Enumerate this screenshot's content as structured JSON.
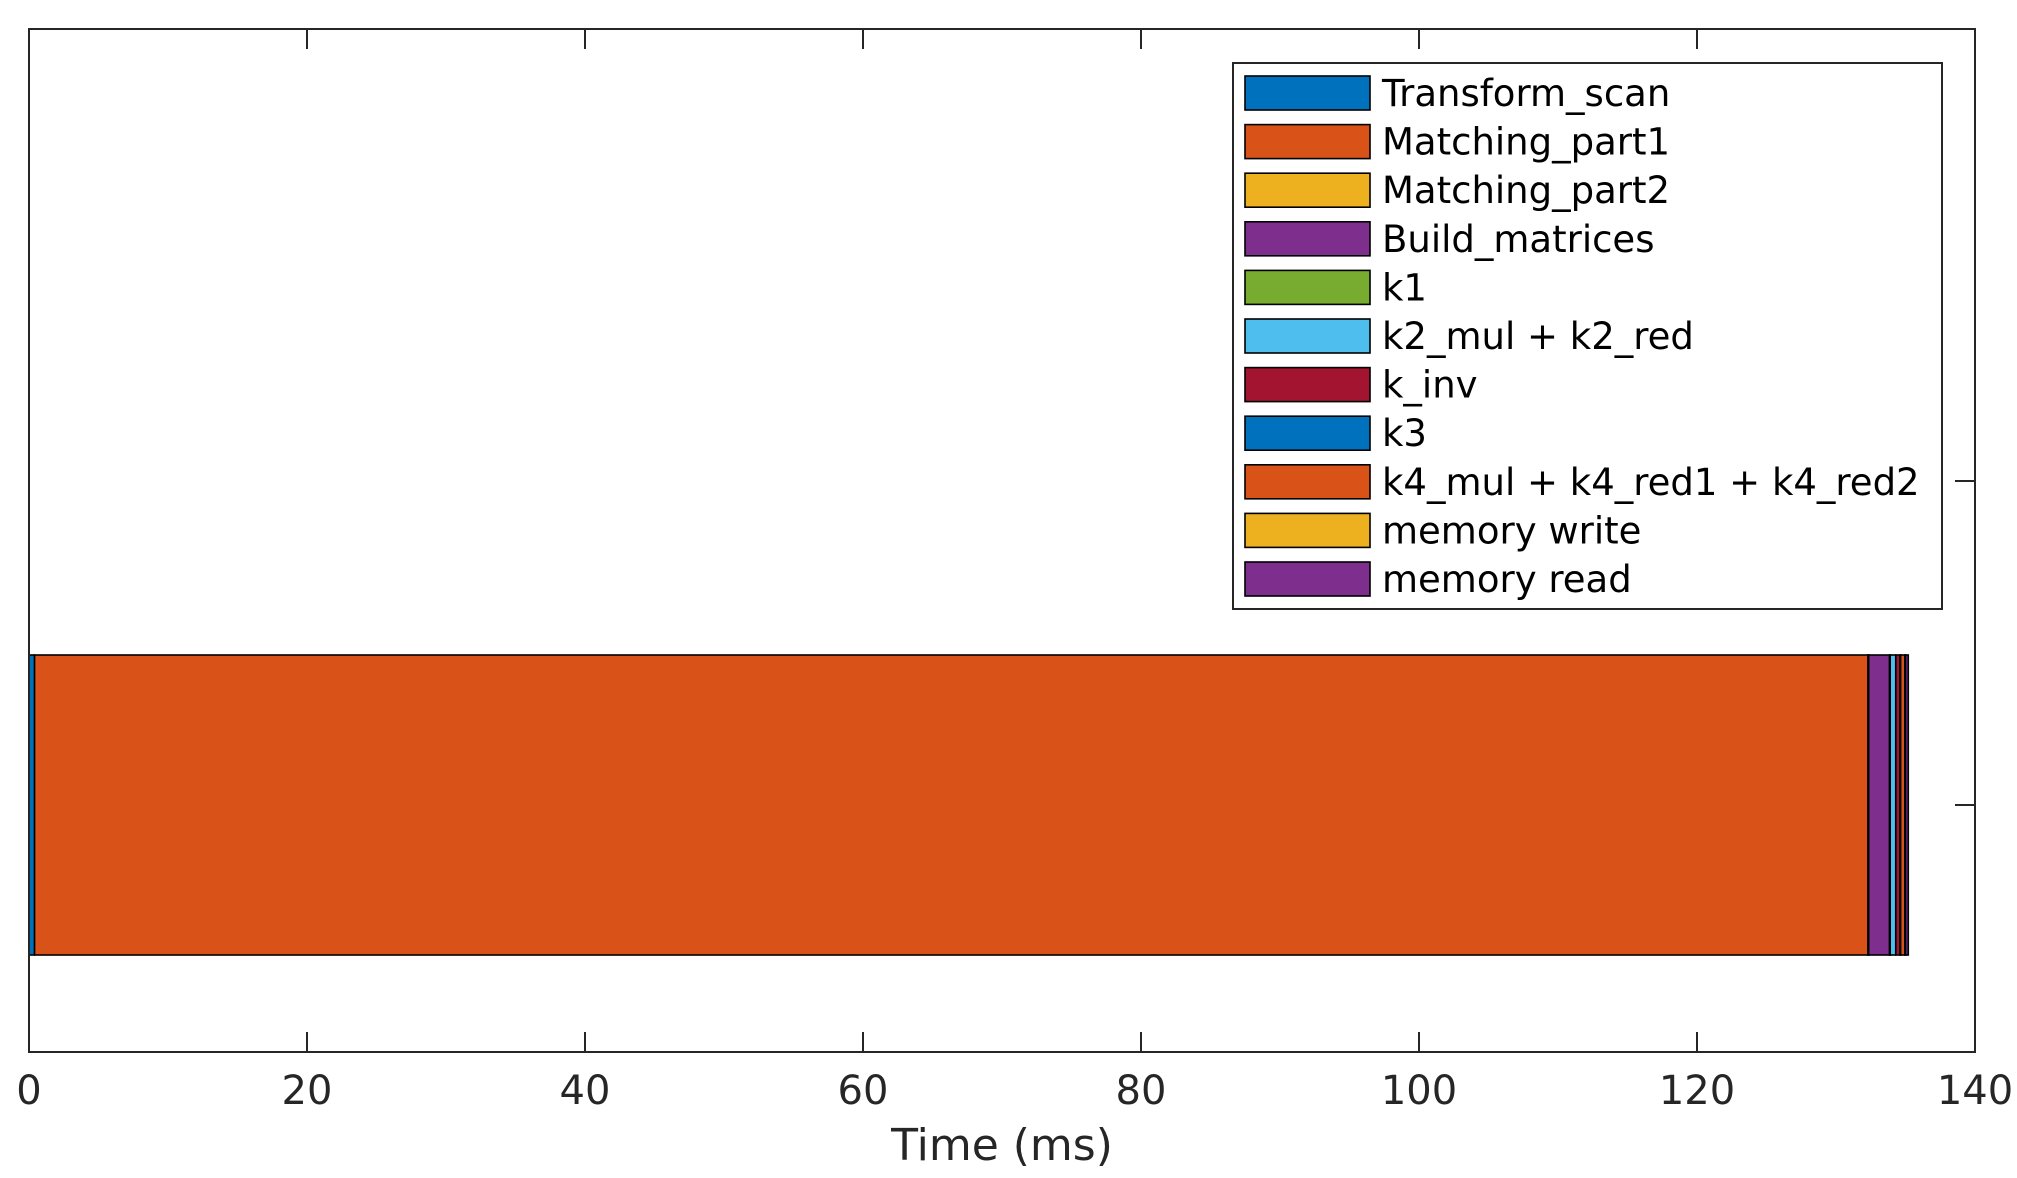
{
  "chart_data": {
    "type": "bar",
    "orientation": "horizontal",
    "stacked": true,
    "title": "",
    "xlabel": "Time (ms)",
    "ylabel": "",
    "xlim": [
      0,
      140
    ],
    "xticks": [
      "0",
      "20",
      "40",
      "60",
      "80",
      "100",
      "120",
      "140"
    ],
    "grid": false,
    "legend_position": "top-right",
    "series": [
      {
        "name": "Transform_scan",
        "value": 0.4,
        "color": "#0072BD"
      },
      {
        "name": "Matching_part1",
        "value": 131.9,
        "color": "#D95319"
      },
      {
        "name": "Matching_part2",
        "value": 0.05,
        "color": "#EDB120"
      },
      {
        "name": "Build_matrices",
        "value": 1.5,
        "color": "#7E2F8E"
      },
      {
        "name": "k1",
        "value": 0.05,
        "color": "#77AC30"
      },
      {
        "name": "k2_mul + k2_red",
        "value": 0.4,
        "color": "#4DBEEE"
      },
      {
        "name": "k_inv",
        "value": 0.3,
        "color": "#A2142F"
      },
      {
        "name": "k3",
        "value": 0.05,
        "color": "#0072BD"
      },
      {
        "name": "k4_mul + k4_red1 + k4_red2",
        "value": 0.3,
        "color": "#D95319"
      },
      {
        "name": "memory write",
        "value": 0.05,
        "color": "#EDB120"
      },
      {
        "name": "memory read",
        "value": 0.2,
        "color": "#7E2F8E"
      }
    ]
  }
}
